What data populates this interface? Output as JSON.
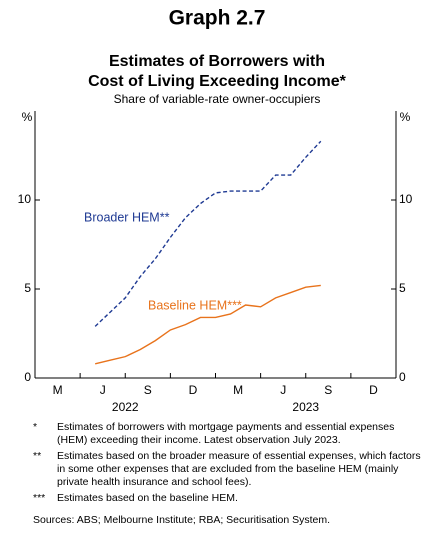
{
  "chart_data": {
    "type": "line",
    "title": "Graph 2.7",
    "subtitle": [
      "Estimates of Borrowers with",
      "Cost of Living Exceeding Income*"
    ],
    "description": "Share of variable-rate owner-occupiers",
    "y_unit": "%",
    "x": [
      "2022-04",
      "2022-05",
      "2022-06",
      "2022-07",
      "2022-08",
      "2022-09",
      "2022-10",
      "2022-11",
      "2022-12",
      "2023-01",
      "2023-02",
      "2023-03",
      "2023-04",
      "2023-05",
      "2023-06",
      "2023-07"
    ],
    "xlim": [
      "2022-01",
      "2023-12"
    ],
    "xtick_labels": [
      "M",
      "J",
      "S",
      "D",
      "M",
      "J",
      "S",
      "D"
    ],
    "year_labels": [
      "2022",
      "2023"
    ],
    "ylim": [
      0,
      15
    ],
    "yticks": [
      0,
      5,
      10
    ],
    "series": [
      {
        "name": "Broader HEM**",
        "color": "#1f3a93",
        "dash": true,
        "values": [
          2.9,
          3.7,
          4.5,
          5.7,
          6.7,
          7.9,
          9.0,
          9.8,
          10.4,
          10.5,
          10.5,
          10.5,
          11.4,
          11.4,
          12.4,
          13.3
        ]
      },
      {
        "name": "Baseline HEM***",
        "color": "#e8731c",
        "dash": false,
        "values": [
          0.8,
          1.0,
          1.2,
          1.6,
          2.1,
          2.7,
          3.0,
          3.4,
          3.4,
          3.6,
          4.1,
          4.0,
          4.5,
          4.8,
          5.1,
          5.2
        ]
      }
    ],
    "footnotes": [
      {
        "marker": "*",
        "text": "Estimates of borrowers with mortgage payments and essential expenses (HEM) exceeding their income. Latest observation July 2023."
      },
      {
        "marker": "**",
        "text": "Estimates based on the broader measure of essential expenses, which factors in some other expenses that are excluded from the baseline HEM (mainly private health insurance and school fees)."
      },
      {
        "marker": "***",
        "text": "Estimates based on the baseline HEM."
      }
    ],
    "sources": "Sources: ABS; Melbourne Institute; RBA; Securitisation System."
  }
}
